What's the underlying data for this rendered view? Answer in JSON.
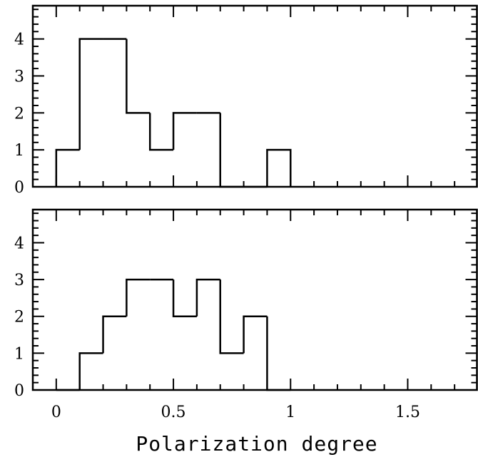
{
  "chart_data": [
    {
      "type": "histogram",
      "panel": "top",
      "bin_edges": [
        0,
        0.1,
        0.2,
        0.3,
        0.4,
        0.5,
        0.6,
        0.7,
        0.8,
        0.9,
        1.0
      ],
      "counts": [
        1,
        4,
        4,
        2,
        1,
        2,
        2,
        0,
        0,
        1
      ],
      "xlim": [
        -0.1,
        1.8
      ],
      "ylim": [
        0,
        4.9
      ],
      "y_tick_labels": [
        "0",
        "1",
        "2",
        "3",
        "4"
      ],
      "x_tick_labels": [],
      "xlabel": "",
      "ylabel": "",
      "title": "",
      "grid": false,
      "color": "#000000"
    },
    {
      "type": "histogram",
      "panel": "bottom",
      "bin_edges": [
        0,
        0.1,
        0.2,
        0.3,
        0.4,
        0.5,
        0.6,
        0.7,
        0.8,
        0.9,
        1.0
      ],
      "counts": [
        0,
        1,
        2,
        3,
        3,
        2,
        3,
        1,
        2,
        0
      ],
      "xlim": [
        -0.1,
        1.8
      ],
      "ylim": [
        0,
        4.9
      ],
      "y_tick_labels": [
        "0",
        "1",
        "2",
        "3",
        "4"
      ],
      "x_tick_labels": [
        "0",
        "0.5",
        "1",
        "1.5"
      ],
      "xlabel": "Polarization degree",
      "ylabel": "",
      "title": "",
      "grid": false,
      "color": "#000000"
    }
  ]
}
